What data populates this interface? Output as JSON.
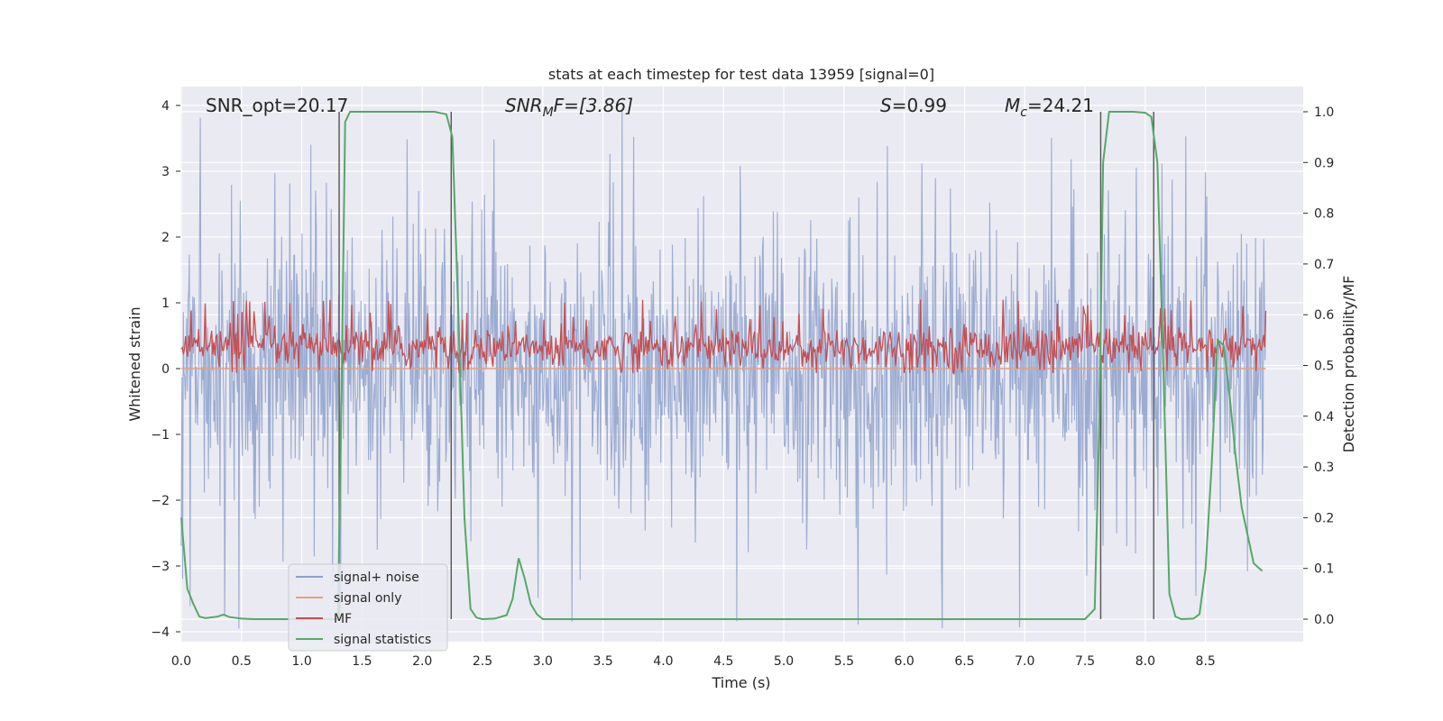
{
  "chart_data": {
    "type": "line",
    "title": "stats at each timestep for test data 13959 [signal=0]",
    "xlabel": "Time (s)",
    "ylabel": "Whitened strain",
    "y2label": "Detection probability/MF",
    "xlim": [
      0,
      9.0
    ],
    "ylim": [
      -4.2,
      4.4
    ],
    "y2lim": [
      -0.045,
      1.045
    ],
    "xticks": [
      "0.0",
      "0.5",
      "1.0",
      "1.5",
      "2.0",
      "2.5",
      "3.0",
      "3.5",
      "4.0",
      "4.5",
      "5.0",
      "5.5",
      "6.0",
      "6.5",
      "7.0",
      "7.5",
      "8.0",
      "8.5"
    ],
    "yticks": [
      "−4",
      "−3",
      "−2",
      "−1",
      "0",
      "1",
      "2",
      "3",
      "4"
    ],
    "y2ticks": [
      "0.0",
      "0.1",
      "0.2",
      "0.3",
      "0.4",
      "0.5",
      "0.6",
      "0.7",
      "0.8",
      "0.9",
      "1.0"
    ],
    "annotations": {
      "snr_opt": "SNR_opt=20.17",
      "snr_mf_sym": "SNR",
      "snr_mf_sub": "M",
      "snr_mf_rest": "F=[3.86]",
      "s_sym": "S",
      "s_rest": "=0.99",
      "mc_sym": "M",
      "mc_sub": "c",
      "mc_rest": "=24.21"
    },
    "legend": {
      "position": "lower left",
      "entries": [
        "signal+ noise",
        "signal only",
        "MF",
        "signal statistics"
      ]
    },
    "colors": {
      "noise": "#8da0cb",
      "signal": "#e8a07c",
      "mf": "#c44e52",
      "stat": "#55a868",
      "vline": "#555555",
      "bg": "#eaeaf2",
      "grid": "#ffffff"
    },
    "series": [
      {
        "name": "signal+ noise",
        "description": "whitened strain, noise-like, amplitude approx ±2 with peaks to ±4"
      },
      {
        "name": "signal only",
        "values_const": 0.0
      },
      {
        "name": "MF",
        "description": "matched filter, fluctuating between approx 0.48 and 0.6 on right axis"
      },
      {
        "name": "signal statistics",
        "x": [
          0.0,
          0.05,
          0.1,
          0.15,
          0.2,
          0.3,
          0.35,
          0.4,
          0.5,
          0.6,
          0.8,
          1.0,
          1.2,
          1.3,
          1.33,
          1.36,
          1.4,
          1.5,
          1.7,
          1.9,
          2.1,
          2.2,
          2.25,
          2.3,
          2.35,
          2.4,
          2.45,
          2.5,
          2.6,
          2.7,
          2.75,
          2.8,
          2.85,
          2.9,
          2.95,
          3.0,
          3.5,
          4.0,
          5.0,
          6.0,
          7.0,
          7.5,
          7.58,
          7.62,
          7.65,
          7.7,
          7.8,
          7.9,
          8.0,
          8.05,
          8.1,
          8.15,
          8.2,
          8.25,
          8.3,
          8.4,
          8.45,
          8.5,
          8.55,
          8.6,
          8.65,
          8.7,
          8.75,
          8.8,
          8.9,
          8.97
        ],
        "y2": [
          0.2,
          0.06,
          0.03,
          0.005,
          0.002,
          0.005,
          0.009,
          0.004,
          0.001,
          0.0,
          0.0,
          0.0,
          0.0,
          0.0,
          0.45,
          0.98,
          1.0,
          1.0,
          1.0,
          1.0,
          1.0,
          0.995,
          0.95,
          0.6,
          0.2,
          0.02,
          0.003,
          0.0,
          0.001,
          0.008,
          0.04,
          0.12,
          0.08,
          0.03,
          0.01,
          0.0,
          0.0,
          0.0,
          0.0,
          0.0,
          0.0,
          0.0,
          0.02,
          0.4,
          0.9,
          1.0,
          1.0,
          1.0,
          0.998,
          0.99,
          0.9,
          0.5,
          0.05,
          0.005,
          0.0,
          0.001,
          0.01,
          0.1,
          0.3,
          0.55,
          0.54,
          0.44,
          0.32,
          0.22,
          0.11,
          0.095
        ]
      }
    ],
    "vlines": [
      1.31,
      2.24,
      7.63,
      8.07
    ]
  }
}
